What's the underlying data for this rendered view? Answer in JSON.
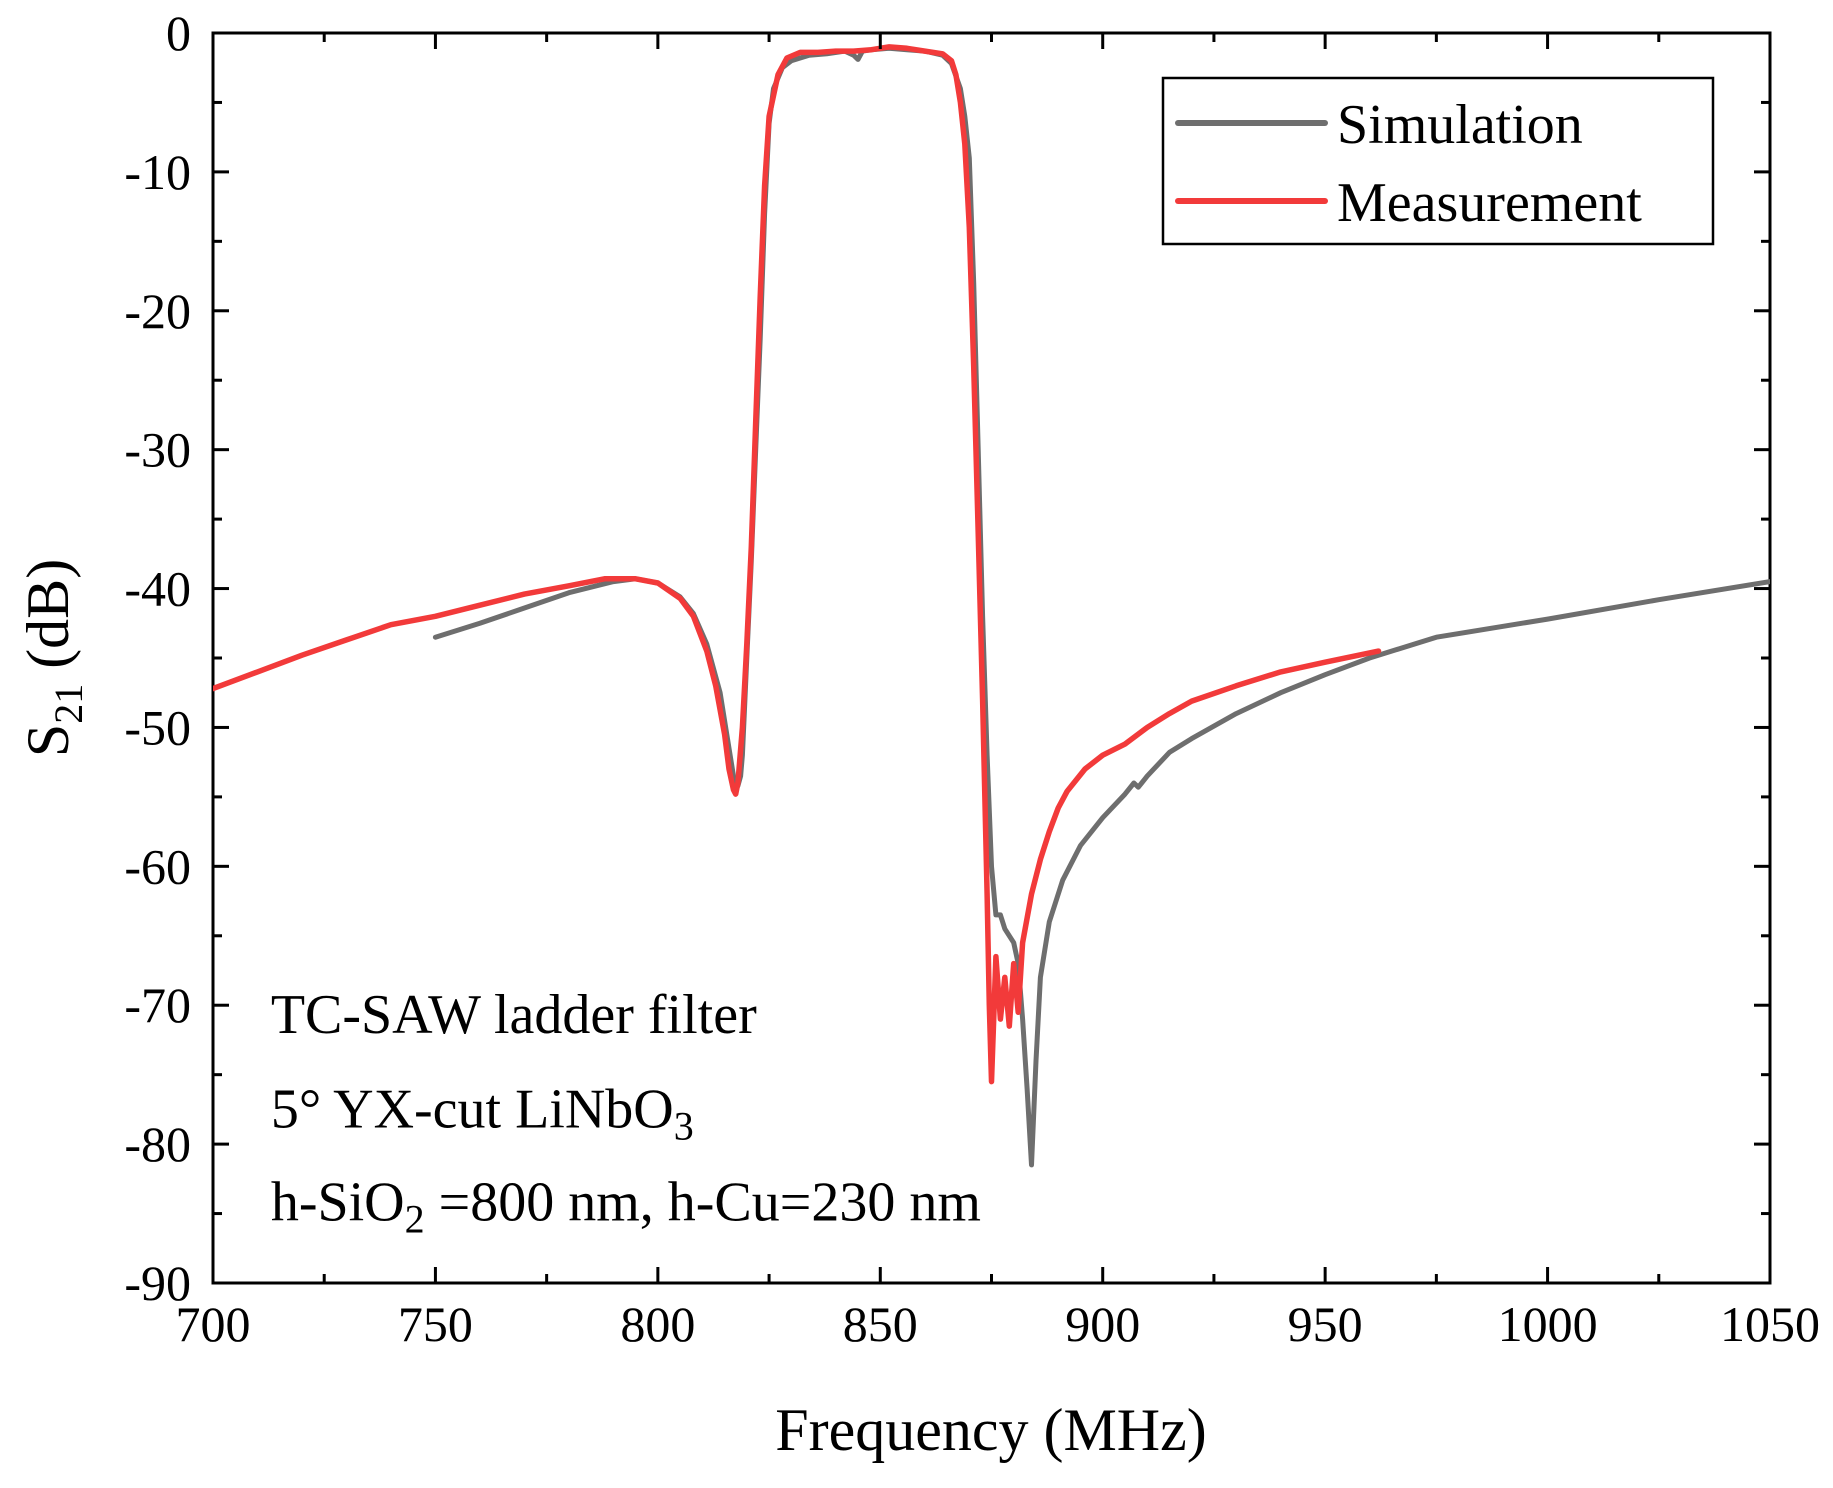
{
  "chart_data": {
    "type": "line",
    "title": "",
    "xlabel": "Frequency (MHz)",
    "ylabel": {
      "main": "S",
      "sub": "21",
      "unit": " (dB)"
    },
    "xlim": [
      700,
      1050
    ],
    "ylim": [
      -90,
      0
    ],
    "xticks": [
      700,
      750,
      800,
      850,
      900,
      950,
      1000,
      1050
    ],
    "yticks": [
      0,
      -10,
      -20,
      -30,
      -40,
      -50,
      -60,
      -70,
      -80,
      -90
    ],
    "xtick_labels": [
      "700",
      "750",
      "800",
      "850",
      "900",
      "950",
      "1000",
      "1050"
    ],
    "ytick_labels": [
      "0",
      "-10",
      "-20",
      "-30",
      "-40",
      "-50",
      "-60",
      "-70",
      "-80",
      "-90"
    ],
    "grid": false,
    "legend_position": "top-right",
    "series": [
      {
        "name": "Simulation",
        "color": "#6e6e6e",
        "points": [
          [
            750,
            -43.5
          ],
          [
            760,
            -42.5
          ],
          [
            770,
            -41.4
          ],
          [
            780,
            -40.3
          ],
          [
            790,
            -39.5
          ],
          [
            795,
            -39.3
          ],
          [
            800,
            -39.6
          ],
          [
            805,
            -40.6
          ],
          [
            808,
            -41.8
          ],
          [
            811,
            -44.0
          ],
          [
            814,
            -47.5
          ],
          [
            816,
            -51.5
          ],
          [
            817,
            -53.5
          ],
          [
            818,
            -54.2
          ],
          [
            818.6,
            -53.5
          ],
          [
            819,
            -52.0
          ],
          [
            820,
            -45.0
          ],
          [
            821,
            -38.0
          ],
          [
            822,
            -30.0
          ],
          [
            823,
            -22.0
          ],
          [
            824,
            -13.0
          ],
          [
            825,
            -6.5
          ],
          [
            826,
            -4.0
          ],
          [
            828,
            -2.5
          ],
          [
            830,
            -2.0
          ],
          [
            834,
            -1.6
          ],
          [
            838,
            -1.5
          ],
          [
            842,
            -1.3
          ],
          [
            844,
            -1.6
          ],
          [
            845,
            -1.9
          ],
          [
            846,
            -1.3
          ],
          [
            848,
            -1.2
          ],
          [
            852,
            -1.1
          ],
          [
            856,
            -1.2
          ],
          [
            860,
            -1.3
          ],
          [
            864,
            -1.6
          ],
          [
            866,
            -2.2
          ],
          [
            868,
            -4.0
          ],
          [
            869,
            -6.0
          ],
          [
            870,
            -9.0
          ],
          [
            871,
            -18.0
          ],
          [
            872,
            -30.0
          ],
          [
            873,
            -42.0
          ],
          [
            874,
            -52.0
          ],
          [
            875,
            -60.0
          ],
          [
            876,
            -63.5
          ],
          [
            877,
            -63.5
          ],
          [
            878,
            -64.5
          ],
          [
            880,
            -65.5
          ],
          [
            881,
            -67.0
          ],
          [
            882,
            -71.0
          ],
          [
            883,
            -76.0
          ],
          [
            884,
            -81.5
          ],
          [
            885,
            -74.0
          ],
          [
            886,
            -68.0
          ],
          [
            888,
            -64.0
          ],
          [
            891,
            -61.0
          ],
          [
            895,
            -58.5
          ],
          [
            900,
            -56.5
          ],
          [
            905,
            -54.8
          ],
          [
            907,
            -54.0
          ],
          [
            908,
            -54.3
          ],
          [
            910,
            -53.5
          ],
          [
            915,
            -51.8
          ],
          [
            920,
            -50.8
          ],
          [
            930,
            -49.0
          ],
          [
            940,
            -47.5
          ],
          [
            950,
            -46.2
          ],
          [
            960,
            -45.0
          ],
          [
            975,
            -43.5
          ],
          [
            1000,
            -42.2
          ],
          [
            1025,
            -40.8
          ],
          [
            1050,
            -39.5
          ]
        ]
      },
      {
        "name": "Measurement",
        "color": "#f23a3a",
        "points": [
          [
            700,
            -47.2
          ],
          [
            710,
            -46.0
          ],
          [
            720,
            -44.8
          ],
          [
            730,
            -43.7
          ],
          [
            740,
            -42.6
          ],
          [
            750,
            -42.0
          ],
          [
            760,
            -41.2
          ],
          [
            770,
            -40.4
          ],
          [
            780,
            -39.8
          ],
          [
            788,
            -39.3
          ],
          [
            795,
            -39.3
          ],
          [
            800,
            -39.6
          ],
          [
            805,
            -40.7
          ],
          [
            808,
            -42.0
          ],
          [
            811,
            -44.5
          ],
          [
            813,
            -47.0
          ],
          [
            815,
            -50.5
          ],
          [
            816,
            -53.0
          ],
          [
            817,
            -54.5
          ],
          [
            817.5,
            -54.8
          ],
          [
            818,
            -54.0
          ],
          [
            819,
            -50.0
          ],
          [
            820,
            -44.0
          ],
          [
            821,
            -37.0
          ],
          [
            822,
            -28.0
          ],
          [
            823,
            -19.0
          ],
          [
            824,
            -11.0
          ],
          [
            825,
            -6.0
          ],
          [
            827,
            -3.0
          ],
          [
            829,
            -1.8
          ],
          [
            832,
            -1.4
          ],
          [
            836,
            -1.4
          ],
          [
            840,
            -1.3
          ],
          [
            844,
            -1.3
          ],
          [
            848,
            -1.2
          ],
          [
            852,
            -1.0
          ],
          [
            856,
            -1.1
          ],
          [
            860,
            -1.3
          ],
          [
            864,
            -1.5
          ],
          [
            866,
            -2.0
          ],
          [
            867,
            -3.0
          ],
          [
            868,
            -5.0
          ],
          [
            869,
            -8.0
          ],
          [
            870,
            -14.0
          ],
          [
            871,
            -24.0
          ],
          [
            872,
            -36.0
          ],
          [
            873,
            -48.0
          ],
          [
            874,
            -62.0
          ],
          [
            874.5,
            -70.0
          ],
          [
            875,
            -75.5
          ],
          [
            876,
            -66.5
          ],
          [
            877,
            -71.0
          ],
          [
            878,
            -68.0
          ],
          [
            879,
            -71.5
          ],
          [
            880,
            -67.0
          ],
          [
            881,
            -70.5
          ],
          [
            882,
            -65.5
          ],
          [
            884,
            -62.0
          ],
          [
            886,
            -59.5
          ],
          [
            888,
            -57.5
          ],
          [
            890,
            -55.8
          ],
          [
            892,
            -54.6
          ],
          [
            896,
            -53.0
          ],
          [
            900,
            -52.0
          ],
          [
            905,
            -51.2
          ],
          [
            910,
            -50.0
          ],
          [
            915,
            -49.0
          ],
          [
            920,
            -48.1
          ],
          [
            930,
            -47.0
          ],
          [
            940,
            -46.0
          ],
          [
            950,
            -45.3
          ],
          [
            962,
            -44.5
          ]
        ]
      }
    ],
    "annotations": [
      {
        "text": "TC-SAW ladder filter",
        "x": 713,
        "y": -72.0
      },
      {
        "text": "5° YX-cut LiNbO",
        "sub": "3",
        "x": 713,
        "y": -78.8
      },
      {
        "text": "h-SiO",
        "sub": "2",
        "after": " =800 nm, h-Cu=230 nm",
        "x": 713,
        "y": -85.5
      }
    ]
  }
}
